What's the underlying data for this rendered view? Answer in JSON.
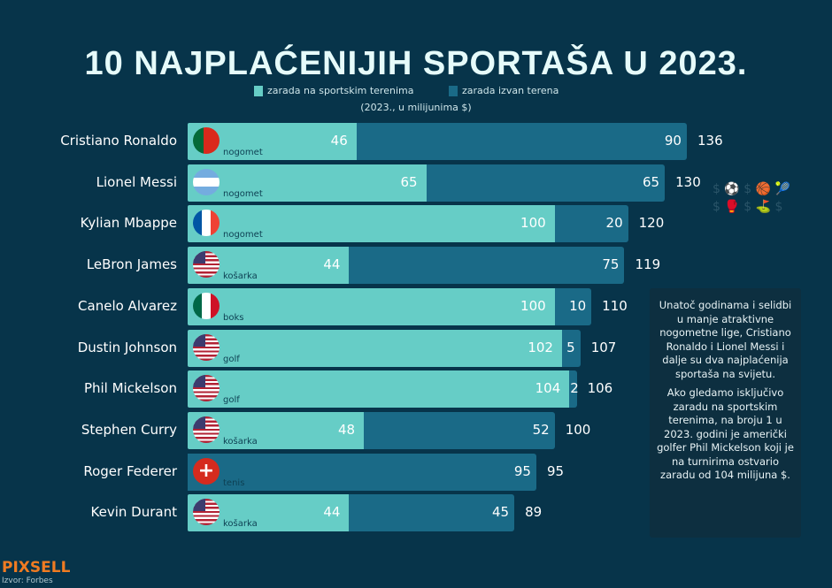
{
  "title": "10 NAJPLAĆENIJIH SPORTAŠA U 2023.",
  "legend": {
    "on": "zarada na sportskim terenima",
    "off": "zarada izvan terena",
    "unit": "(2023., u milijunima $)"
  },
  "colors": {
    "on": "#66cdc6",
    "off": "#1a6a87",
    "background": "#07344a"
  },
  "chart_data": {
    "type": "bar",
    "orientation": "horizontal",
    "stacked": true,
    "categories": [
      "Cristiano Ronaldo",
      "Lionel Messi",
      "Kylian Mbappe",
      "LeBron James",
      "Canelo Alvarez",
      "Dustin Johnson",
      "Phil Mickelson",
      "Stephen Curry",
      "Roger Federer",
      "Kevin Durant"
    ],
    "sports": [
      "nogomet",
      "nogomet",
      "nogomet",
      "košarka",
      "boks",
      "golf",
      "golf",
      "košarka",
      "tenis",
      "košarka"
    ],
    "flags": [
      "portugal-flag",
      "argentina-flag",
      "france-flag",
      "usa-flag",
      "mexico-flag",
      "usa-flag",
      "usa-flag",
      "usa-flag",
      "switzerland-flag",
      "usa-flag"
    ],
    "series": [
      {
        "name": "zarada na sportskim terenima",
        "values": [
          46,
          65,
          100,
          44,
          100,
          102,
          104,
          48,
          0,
          44
        ]
      },
      {
        "name": "zarada izvan terena",
        "values": [
          90,
          65,
          20,
          75,
          10,
          5,
          2,
          52,
          95,
          45
        ]
      }
    ],
    "totals": [
      136,
      130,
      120,
      119,
      110,
      107,
      106,
      100,
      95,
      89
    ]
  },
  "note": {
    "p1": "Unatoč godinama i selidbi u manje atraktivne nogometne lige, Cristiano Ronaldo i Lionel Messi i dalje su dva najplaćenija sportaša na svijetu.",
    "p2": "Ako gledamo isključivo zaradu na sportskim terenima, na broju 1 u 2023. godini je američki golfer Phil Mickelson koji je na turnirima ostvario zaradu od 104 milijuna $."
  },
  "logo": "PIXSELL",
  "source": "Izvor: Forbes"
}
